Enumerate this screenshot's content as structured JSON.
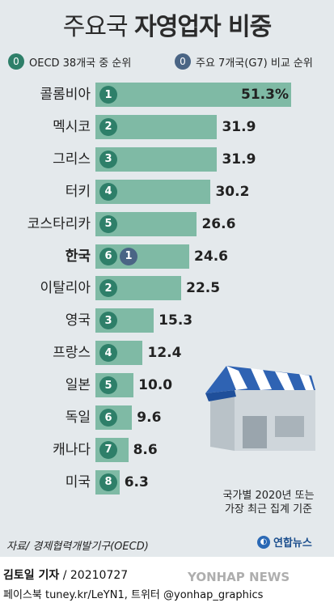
{
  "title_light": "주요국",
  "title_bold": "자영업자 비중",
  "legend": {
    "oecd_dot": "0",
    "oecd_label": "OECD 38개국 중 순위",
    "g7_dot": "0",
    "g7_label": "주요 7개국(G7) 비교 순위"
  },
  "chart_data": {
    "type": "bar",
    "orientation": "horizontal",
    "title": "주요국 자영업자 비중",
    "categories": [
      "콜롬비아",
      "멕시코",
      "그리스",
      "터키",
      "코스타리카",
      "한국",
      "이탈리아",
      "영국",
      "프랑스",
      "일본",
      "독일",
      "캐나다",
      "미국"
    ],
    "values": [
      51.3,
      31.9,
      31.9,
      30.2,
      26.6,
      24.6,
      22.5,
      15.3,
      12.4,
      10.0,
      9.6,
      8.6,
      6.3
    ],
    "value_labels": [
      "51.3%",
      "31.9",
      "31.9",
      "30.2",
      "26.6",
      "24.6",
      "22.5",
      "15.3",
      "12.4",
      "10.0",
      "9.6",
      "8.6",
      "6.3"
    ],
    "oecd_rank": [
      "1",
      "2",
      "3",
      "4",
      "5",
      "6",
      "2",
      "3",
      "4",
      "5",
      "6",
      "7",
      "8"
    ],
    "g7_rank": [
      "",
      "",
      "",
      "",
      "",
      "1",
      "",
      "",
      "",
      "",
      "",
      "",
      ""
    ],
    "highlight": "한국",
    "xlim": [
      0,
      55
    ],
    "colors": {
      "bar": "#7fbaa5",
      "oecd_rank": "#2e7f69",
      "g7_rank": "#4a6585"
    }
  },
  "note": [
    "국가별 2020년 또는",
    "가장 최근 집계 기준"
  ],
  "source": "자료/ 경제협력개발기구(OECD)",
  "logo": "연합뉴스",
  "logo_icon": "yonhap-circle-icon",
  "byline_name": "김토일 기자",
  "byline_date": "/ 20210727",
  "contact": "페이스북 tuney.kr/LeYN1, 트위터 @yonhap_graphics",
  "watermark": "YONHAP NEWS"
}
